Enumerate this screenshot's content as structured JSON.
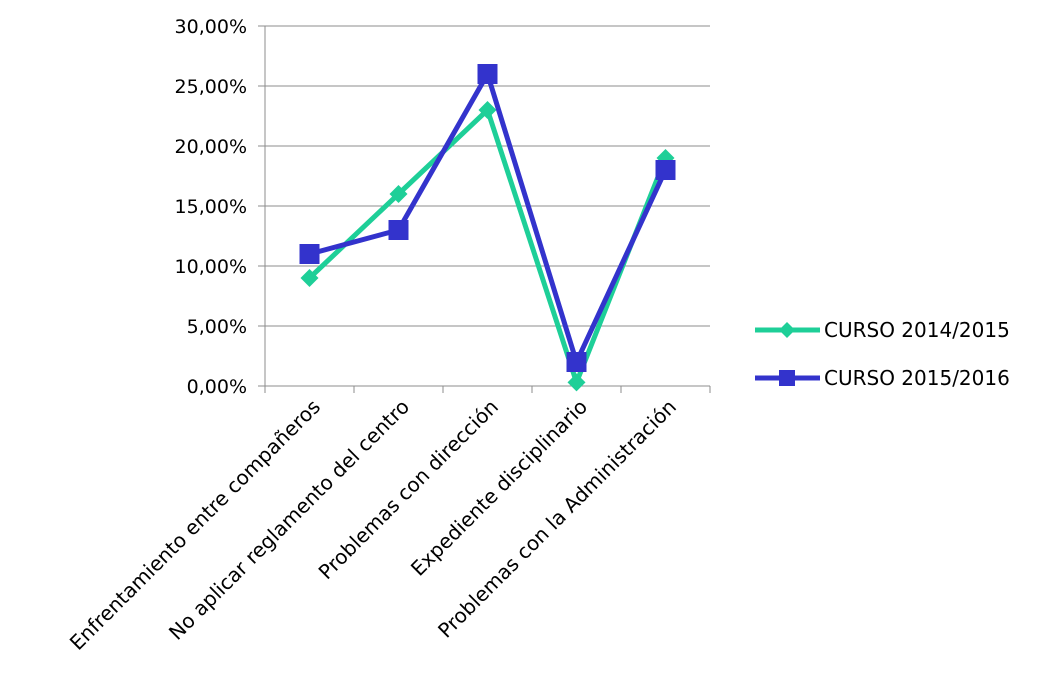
{
  "chart_data": {
    "type": "line",
    "title": "",
    "xlabel": "",
    "ylabel": "",
    "ylim": [
      0,
      30
    ],
    "y_ticks": [
      "0,00%",
      "5,00%",
      "10,00%",
      "15,00%",
      "20,00%",
      "25,00%",
      "30,00%"
    ],
    "grid": "horizontal",
    "legend_position": "right",
    "categories": [
      "Enfrentamiento entre compañeros",
      "No aplicar reglamento del centro",
      "Problemas con dirección",
      "Expediente disciplinario",
      "Problemas con la Administración"
    ],
    "series": [
      {
        "name": "CURSO 2014/2015",
        "color": "#1ecf98",
        "marker": "diamond",
        "values": [
          9,
          16,
          23,
          0.3,
          19
        ]
      },
      {
        "name": "CURSO 2015/2016",
        "color": "#3333cc",
        "marker": "square",
        "values": [
          11,
          13,
          26,
          2,
          18
        ]
      }
    ]
  }
}
